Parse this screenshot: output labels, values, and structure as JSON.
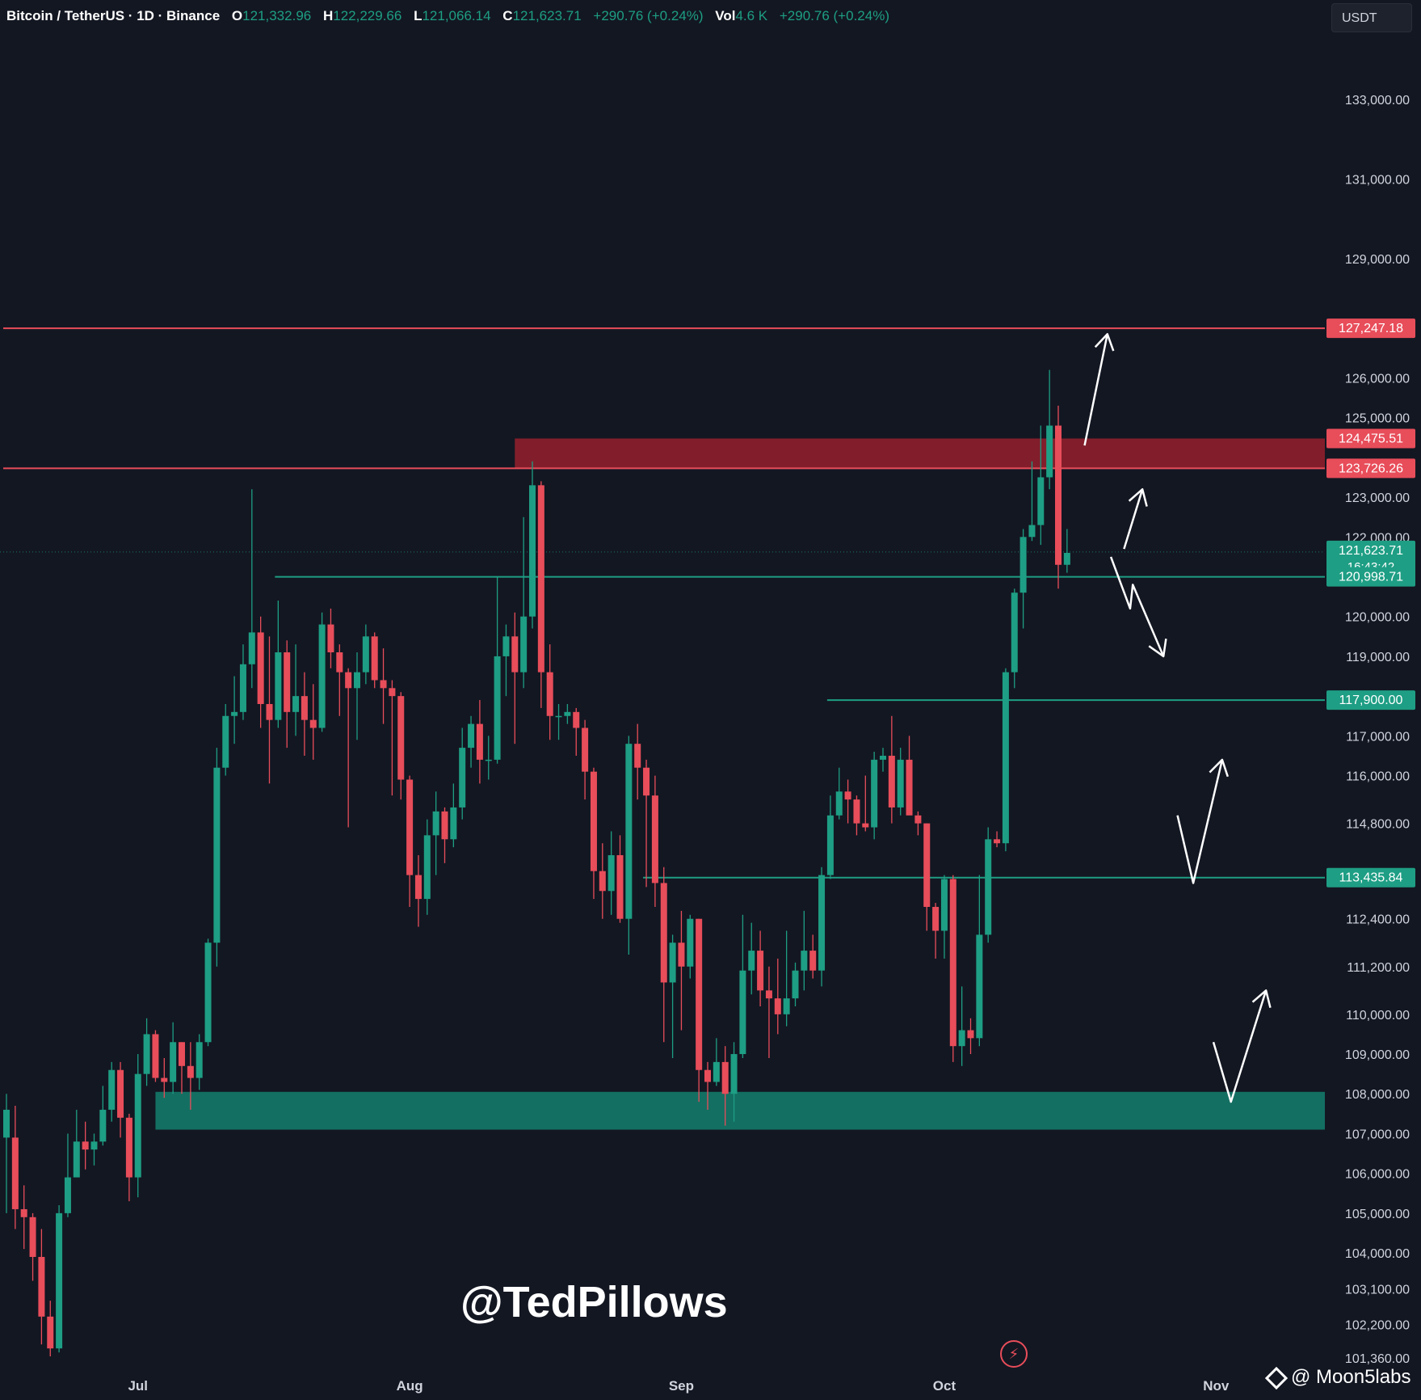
{
  "header": {
    "symbol": "Bitcoin / TetherUS · 1D · Binance",
    "o_label": "O",
    "o_value": "121,332.96",
    "h_label": "H",
    "h_value": "122,229.66",
    "l_label": "L",
    "l_value": "121,066.14",
    "c_label": "C",
    "c_value": "121,623.71",
    "change": "+290.76 (+0.24%)",
    "vol_label": "Vol",
    "vol_value": "4.6 K",
    "vol_change": "+290.76 (+0.24%)"
  },
  "currency_button": "USDT",
  "watermark": "@TedPillows",
  "brand": "@ Moon5labs",
  "colors": {
    "up": "#1e9e84",
    "down": "#e84d5a",
    "bg": "#131722",
    "zone_up": "#137768",
    "zone_down": "#8c1f2c"
  },
  "chart_data": {
    "type": "candlestick",
    "ylim": [
      101000,
      134000
    ],
    "y_ticks": [
      {
        "value": 133000,
        "label": "133,000.00"
      },
      {
        "value": 131000,
        "label": "131,000.00"
      },
      {
        "value": 129000,
        "label": "129,000.00"
      },
      {
        "value": 126000,
        "label": "126,000.00"
      },
      {
        "value": 125000,
        "label": "125,000.00"
      },
      {
        "value": 123000,
        "label": "123,000.00"
      },
      {
        "value": 122000,
        "label": "122,000.00"
      },
      {
        "value": 120000,
        "label": "120,000.00"
      },
      {
        "value": 119000,
        "label": "119,000.00"
      },
      {
        "value": 117000,
        "label": "117,000.00"
      },
      {
        "value": 116000,
        "label": "116,000.00"
      },
      {
        "value": 114800,
        "label": "114,800.00"
      },
      {
        "value": 112400,
        "label": "112,400.00"
      },
      {
        "value": 111200,
        "label": "111,200.00"
      },
      {
        "value": 110000,
        "label": "110,000.00"
      },
      {
        "value": 109000,
        "label": "109,000.00"
      },
      {
        "value": 108000,
        "label": "108,000.00"
      },
      {
        "value": 107000,
        "label": "107,000.00"
      },
      {
        "value": 106000,
        "label": "106,000.00"
      },
      {
        "value": 105000,
        "label": "105,000.00"
      },
      {
        "value": 104000,
        "label": "104,000.00"
      },
      {
        "value": 103100,
        "label": "103,100.00"
      },
      {
        "value": 102200,
        "label": "102,200.00"
      },
      {
        "value": 101360,
        "label": "101,360.00"
      }
    ],
    "x_ticks": [
      {
        "index": 15,
        "label": "Jul"
      },
      {
        "index": 46,
        "label": "Aug"
      },
      {
        "index": 77,
        "label": "Sep"
      },
      {
        "index": 107,
        "label": "Oct"
      },
      {
        "index": 138,
        "label": "Nov"
      }
    ],
    "price_labels": [
      {
        "value": 127247.18,
        "label": "127,247.18",
        "color": "#e84d5a"
      },
      {
        "value": 124475.51,
        "label": "124,475.51",
        "color": "#e84d5a"
      },
      {
        "value": 123726.26,
        "label": "123,726.26",
        "color": "#e84d5a"
      },
      {
        "value": 121623.71,
        "label": "121,623.71",
        "sub": "16:43:42",
        "color": "#1e9e84"
      },
      {
        "value": 120998.71,
        "label": "120,998.71",
        "color": "#1e9e84"
      },
      {
        "value": 117900,
        "label": "117,900.00",
        "color": "#1e9e84"
      },
      {
        "value": 113435.84,
        "label": "113,435.84",
        "color": "#1e9e84"
      }
    ],
    "horizontal_lines": [
      {
        "value": 127247.18,
        "color": "#e84d5a",
        "from_index": 0
      },
      {
        "value": 123726.26,
        "color": "#e84d5a",
        "from_index": 0
      },
      {
        "value": 120998.71,
        "color": "#1e9e84",
        "from_index": 31
      },
      {
        "value": 117900,
        "color": "#1e9e84",
        "from_index": 94
      },
      {
        "value": 113435.84,
        "color": "#1e9e84",
        "from_index": 73
      }
    ],
    "zones": [
      {
        "from": 123726.26,
        "to": 124475.51,
        "from_index": 58,
        "color": "#8c1f2c"
      },
      {
        "from": 107100,
        "to": 108050,
        "from_index": 17,
        "color": "#137768"
      }
    ],
    "last_price": 121623.71,
    "candles": [
      [
        106900,
        107600,
        105000,
        108000
      ],
      [
        106900,
        105100,
        104600,
        107700
      ],
      [
        105100,
        104900,
        104100,
        105700
      ],
      [
        104900,
        103900,
        103300,
        105000
      ],
      [
        103900,
        102400,
        101700,
        104600
      ],
      [
        102400,
        101600,
        101400,
        102800
      ],
      [
        101600,
        105000,
        101500,
        105200
      ],
      [
        105000,
        105900,
        104900,
        107000
      ],
      [
        105900,
        106800,
        106000,
        107600
      ],
      [
        106800,
        106600,
        106100,
        107300
      ],
      [
        106600,
        106800,
        106200,
        107000
      ],
      [
        106800,
        107600,
        106700,
        108200
      ],
      [
        107600,
        108600,
        107300,
        108800
      ],
      [
        108600,
        107400,
        106900,
        108800
      ],
      [
        107400,
        105900,
        105300,
        107500
      ],
      [
        105900,
        108500,
        105400,
        109000
      ],
      [
        108500,
        109500,
        108200,
        109900
      ],
      [
        109500,
        108400,
        108300,
        109600
      ],
      [
        108400,
        108300,
        107900,
        108900
      ],
      [
        108300,
        109300,
        108000,
        109800
      ],
      [
        109300,
        108700,
        108000,
        109300
      ],
      [
        108700,
        108400,
        107600,
        109300
      ],
      [
        108400,
        109300,
        108100,
        109500
      ],
      [
        109300,
        111800,
        109200,
        111900
      ],
      [
        111800,
        116200,
        111200,
        116700
      ],
      [
        116200,
        117500,
        116000,
        117800
      ],
      [
        117500,
        117600,
        116800,
        118500
      ],
      [
        117600,
        118800,
        117400,
        119300
      ],
      [
        118800,
        119600,
        118200,
        123200
      ],
      [
        119600,
        117800,
        117200,
        120000
      ],
      [
        117800,
        117400,
        115800,
        119500
      ],
      [
        117400,
        119100,
        117200,
        120400
      ],
      [
        119100,
        117600,
        116700,
        119400
      ],
      [
        117600,
        118000,
        117000,
        119300
      ],
      [
        118000,
        117400,
        116500,
        118600
      ],
      [
        117400,
        117200,
        116400,
        118300
      ],
      [
        117200,
        119800,
        117100,
        120100
      ],
      [
        119800,
        119100,
        118700,
        120200
      ],
      [
        119100,
        118600,
        117500,
        119300
      ],
      [
        118600,
        118200,
        114700,
        118700
      ],
      [
        118200,
        118600,
        116900,
        119100
      ],
      [
        118600,
        119500,
        118300,
        119800
      ],
      [
        119500,
        118400,
        118200,
        119600
      ],
      [
        118400,
        118200,
        117300,
        119200
      ],
      [
        118200,
        118000,
        115500,
        118400
      ],
      [
        118000,
        115900,
        115400,
        118100
      ],
      [
        115900,
        113500,
        112700,
        116000
      ],
      [
        113500,
        112900,
        112200,
        114000
      ],
      [
        112900,
        114500,
        112500,
        114900
      ],
      [
        114500,
        115100,
        113500,
        115600
      ],
      [
        115100,
        114400,
        113800,
        115200
      ],
      [
        114400,
        115200,
        114200,
        115800
      ],
      [
        115200,
        116700,
        114900,
        117200
      ],
      [
        116700,
        117300,
        116200,
        117500
      ],
      [
        117300,
        116400,
        115800,
        117900
      ],
      [
        116400,
        116400,
        115900,
        117000
      ],
      [
        116400,
        119000,
        116300,
        121000
      ],
      [
        119000,
        119500,
        118000,
        119800
      ],
      [
        119500,
        118600,
        116800,
        120100
      ],
      [
        118600,
        120000,
        118200,
        122500
      ],
      [
        120000,
        123300,
        119700,
        123900
      ],
      [
        123300,
        118600,
        117700,
        123400
      ],
      [
        118600,
        117500,
        116900,
        119300
      ],
      [
        117500,
        117500,
        116900,
        117800
      ],
      [
        117500,
        117600,
        117300,
        117800
      ],
      [
        117600,
        117200,
        116500,
        117700
      ],
      [
        117200,
        116100,
        115400,
        117400
      ],
      [
        116100,
        113600,
        112900,
        116200
      ],
      [
        113600,
        113100,
        112400,
        114300
      ],
      [
        113100,
        114000,
        112500,
        114600
      ],
      [
        114000,
        112400,
        112300,
        114500
      ],
      [
        112400,
        116800,
        111500,
        117000
      ],
      [
        116800,
        116200,
        115400,
        117300
      ],
      [
        116200,
        115500,
        113200,
        116400
      ],
      [
        115500,
        113300,
        112700,
        116000
      ],
      [
        113300,
        110800,
        109300,
        113700
      ],
      [
        110800,
        111800,
        108900,
        112000
      ],
      [
        111800,
        111200,
        109600,
        112600
      ],
      [
        111200,
        112400,
        110900,
        112500
      ],
      [
        112400,
        108600,
        107800,
        112400
      ],
      [
        108600,
        108300,
        107600,
        108800
      ],
      [
        108300,
        108800,
        108200,
        109400
      ],
      [
        108800,
        108000,
        107200,
        109200
      ],
      [
        108000,
        109000,
        107300,
        109300
      ],
      [
        109000,
        111100,
        108900,
        112500
      ],
      [
        111100,
        111600,
        110500,
        112300
      ],
      [
        111600,
        110600,
        110200,
        112100
      ],
      [
        110600,
        110400,
        108900,
        111200
      ],
      [
        110400,
        110000,
        109500,
        111400
      ],
      [
        110000,
        110400,
        109700,
        112100
      ],
      [
        110400,
        111100,
        110200,
        111300
      ],
      [
        111100,
        111600,
        110600,
        112600
      ],
      [
        111600,
        111100,
        110900,
        112000
      ],
      [
        111100,
        113500,
        110700,
        113700
      ],
      [
        113500,
        115000,
        113400,
        115500
      ],
      [
        115000,
        115600,
        114900,
        116200
      ],
      [
        115600,
        115400,
        114800,
        115900
      ],
      [
        115400,
        114800,
        114500,
        115500
      ],
      [
        114800,
        114700,
        114600,
        116000
      ],
      [
        114700,
        116400,
        114400,
        116600
      ],
      [
        116400,
        116500,
        116100,
        116700
      ],
      [
        116500,
        115200,
        114800,
        117500
      ],
      [
        115200,
        116400,
        115000,
        116700
      ],
      [
        116400,
        115000,
        115100,
        117000
      ],
      [
        115000,
        114800,
        114500,
        115100
      ],
      [
        114800,
        112700,
        112100,
        114800
      ],
      [
        112700,
        112100,
        111400,
        112800
      ],
      [
        112100,
        113400,
        111400,
        113500
      ],
      [
        113400,
        109200,
        108800,
        113500
      ],
      [
        109200,
        109600,
        108700,
        110700
      ],
      [
        109600,
        109400,
        109000,
        109900
      ],
      [
        109400,
        112000,
        109200,
        113500
      ],
      [
        112000,
        114400,
        111800,
        114700
      ],
      [
        114400,
        114300,
        114200,
        114600
      ],
      [
        114300,
        118600,
        114100,
        118700
      ],
      [
        118600,
        120600,
        118200,
        120700
      ],
      [
        120600,
        122000,
        119700,
        122200
      ],
      [
        122000,
        122300,
        121900,
        123900
      ],
      [
        122300,
        123500,
        121800,
        124800
      ],
      [
        123500,
        124800,
        123200,
        126200
      ],
      [
        124800,
        121300,
        120700,
        125300
      ],
      [
        121300,
        121600,
        121100,
        122200
      ]
    ],
    "arrows": [
      {
        "points": [
          [
            123,
            124300
          ],
          [
            125.6,
            127100
          ]
        ]
      },
      {
        "points": [
          [
            127.5,
            121700
          ],
          [
            129.6,
            123200
          ]
        ]
      },
      {
        "points": [
          [
            126,
            121500
          ],
          [
            128.2,
            120200
          ],
          [
            128.5,
            120800
          ],
          [
            132,
            119000
          ]
        ]
      },
      {
        "points": [
          [
            133.6,
            115000
          ],
          [
            135.4,
            113300
          ],
          [
            138.7,
            116400
          ]
        ]
      },
      {
        "points": [
          [
            137.7,
            109300
          ],
          [
            139.7,
            107800
          ],
          [
            143.7,
            110600
          ]
        ]
      }
    ]
  }
}
